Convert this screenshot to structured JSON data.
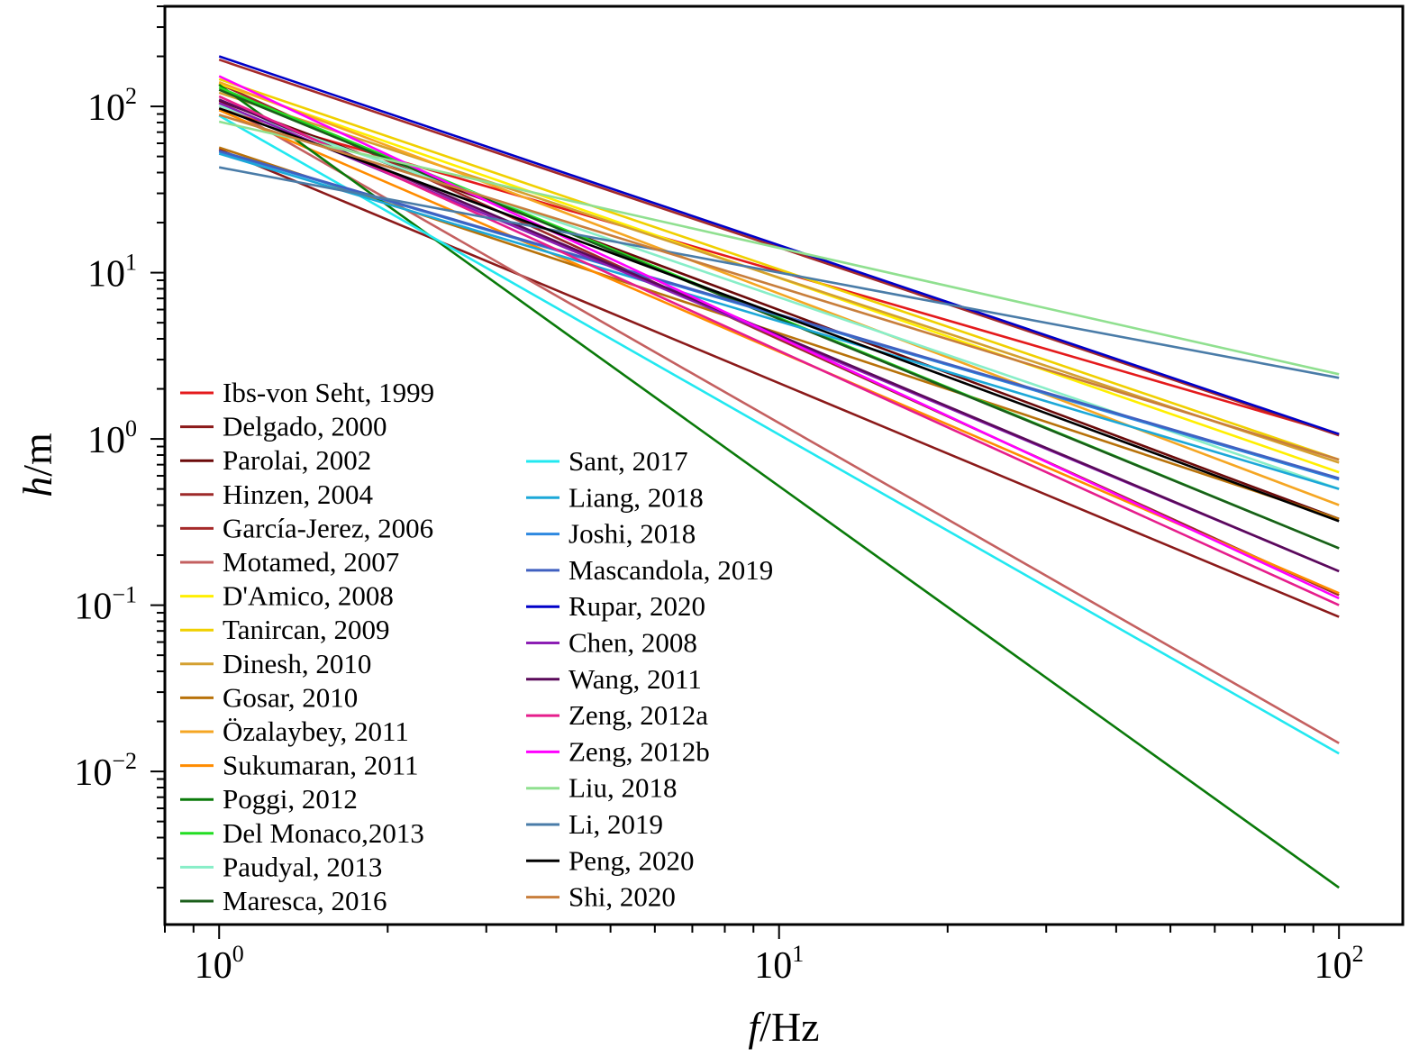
{
  "chart_data": {
    "type": "line",
    "xscale": "log",
    "yscale": "log",
    "xlabel": {
      "italic": "f",
      "unit": "/Hz"
    },
    "ylabel": {
      "italic": "h",
      "unit": "/m"
    },
    "xlim": [
      0.8,
      130
    ],
    "ylim": [
      0.0012,
      400
    ],
    "x_ticks": [
      {
        "value": 1,
        "base": "10",
        "exp": "0"
      },
      {
        "value": 10,
        "base": "10",
        "exp": "1"
      },
      {
        "value": 100,
        "base": "10",
        "exp": "2"
      }
    ],
    "y_ticks": [
      {
        "value": 0.01,
        "base": "10",
        "exp": "−2"
      },
      {
        "value": 0.1,
        "base": "10",
        "exp": "−1"
      },
      {
        "value": 1,
        "base": "10",
        "exp": "0"
      },
      {
        "value": 10,
        "base": "10",
        "exp": "1"
      },
      {
        "value": 100,
        "base": "10",
        "exp": "2"
      }
    ],
    "grid": false,
    "legend_position": "lower-left, two columns",
    "x_range": [
      1,
      100
    ],
    "series": [
      {
        "name": "Ibs-von Seht, 1999",
        "color": "#e41a1c",
        "y_at_1": 96.93,
        "y_at_100": 1.07
      },
      {
        "name": "Delgado, 2000",
        "color": "#8b1a1a",
        "y_at_1": 55.11,
        "y_at_100": 0.085
      },
      {
        "name": "Parolai, 2002",
        "color": "#6b0a0a",
        "y_at_1": 108,
        "y_at_100": 0.33
      },
      {
        "name": "Hinzen, 2004",
        "color": "#9e2a2a",
        "y_at_1": 137,
        "y_at_100": 0.115
      },
      {
        "name": "García-Jerez, 2006",
        "color": "#a52a2a",
        "y_at_1": 191,
        "y_at_100": 1.05
      },
      {
        "name": "Motamed, 2007",
        "color": "#c46060",
        "y_at_1": 105,
        "y_at_100": 0.0148
      },
      {
        "name": "D'Amico, 2008",
        "color": "#ffef00",
        "y_at_1": 137,
        "y_at_100": 0.63
      },
      {
        "name": "Tanircan, 2009",
        "color": "#f0d000",
        "y_at_1": 146,
        "y_at_100": 0.75
      },
      {
        "name": "Dinesh, 2010",
        "color": "#d4a030",
        "y_at_1": 121,
        "y_at_100": 0.72
      },
      {
        "name": "Gosar, 2010",
        "color": "#b8720a",
        "y_at_1": 56.6,
        "y_at_100": 0.33
      },
      {
        "name": "Özalaybey, 2011",
        "color": "#f5a623",
        "y_at_1": 140,
        "y_at_100": 0.4
      },
      {
        "name": "Sukumaran, 2011",
        "color": "#ff8c00",
        "y_at_1": 95,
        "y_at_100": 0.118
      },
      {
        "name": "Poggi, 2012",
        "color": "#0a7a0a",
        "y_at_1": 135,
        "y_at_100": 0.002
      },
      {
        "name": "Del Monaco,2013",
        "color": "#22dd22",
        "y_at_1": 130,
        "y_at_100": 0.22
      },
      {
        "name": "Paudyal, 2013",
        "color": "#88eec8",
        "y_at_1": 101,
        "y_at_100": 0.5
      },
      {
        "name": "Maresca, 2016",
        "color": "#1a5e1a",
        "y_at_1": 126,
        "y_at_100": 0.22
      },
      {
        "name": "Sant, 2017",
        "color": "#22e8f0",
        "y_at_1": 88,
        "y_at_100": 0.0128
      },
      {
        "name": "Liang, 2018",
        "color": "#1ca8d8",
        "y_at_1": 52,
        "y_at_100": 0.5
      },
      {
        "name": "Joshi, 2018",
        "color": "#2d88e0",
        "y_at_1": 53.5,
        "y_at_100": 0.57
      },
      {
        "name": "Mascandola, 2019",
        "color": "#4060c0",
        "y_at_1": 54,
        "y_at_100": 0.58
      },
      {
        "name": "Rupar, 2020",
        "color": "#0000c8",
        "y_at_1": 200,
        "y_at_100": 1.07
      },
      {
        "name": "Chen, 2008",
        "color": "#8c1fb4",
        "y_at_1": 105,
        "y_at_100": 0.16
      },
      {
        "name": "Wang, 2011",
        "color": "#5a0a5a",
        "y_at_1": 110,
        "y_at_100": 0.16
      },
      {
        "name": "Zeng, 2012a",
        "color": "#e61e8c",
        "y_at_1": 115,
        "y_at_100": 0.1
      },
      {
        "name": "Zeng, 2012b",
        "color": "#ff00ff",
        "y_at_1": 152,
        "y_at_100": 0.11
      },
      {
        "name": "Liu, 2018",
        "color": "#90e090",
        "y_at_1": 81,
        "y_at_100": 2.45
      },
      {
        "name": "Li, 2019",
        "color": "#4a7ca8",
        "y_at_1": 43,
        "y_at_100": 2.33
      },
      {
        "name": "Peng, 2020",
        "color": "#000000",
        "y_at_1": 97.4,
        "y_at_100": 0.32
      },
      {
        "name": "Shi, 2020",
        "color": "#c87e3c",
        "y_at_1": 89,
        "y_at_100": 0.75
      }
    ],
    "legend_columns": [
      16,
      13
    ]
  }
}
